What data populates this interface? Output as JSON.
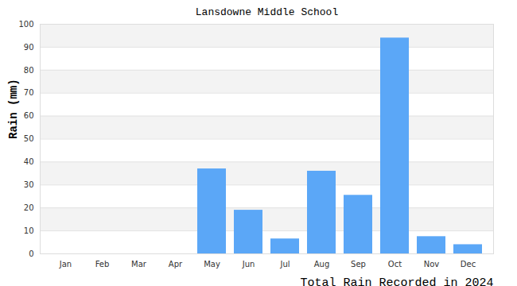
{
  "chart_data": {
    "type": "bar",
    "title": "Lansdowne Middle School",
    "y_label": "Rain (mm)",
    "caption": "Total Rain Recorded in 2024",
    "categories": [
      "Jan",
      "Feb",
      "Mar",
      "Apr",
      "May",
      "Jun",
      "Jul",
      "Aug",
      "Sep",
      "Oct",
      "Nov",
      "Dec"
    ],
    "values": [
      0,
      0,
      0,
      0,
      37,
      19,
      6.5,
      36,
      25.5,
      94,
      7.5,
      4
    ],
    "color": "#5ba7f7",
    "ylim": [
      0,
      100
    ],
    "yticks": [
      0,
      10,
      20,
      30,
      40,
      50,
      60,
      70,
      80,
      90,
      100
    ],
    "grid": true
  }
}
